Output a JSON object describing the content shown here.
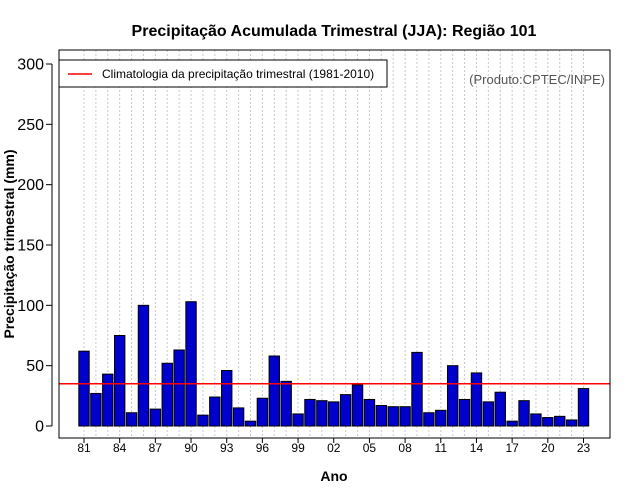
{
  "chart_data": {
    "type": "bar",
    "title": "Precipitação Acumulada Trimestral (JJA): Região 101",
    "xlabel": "Ano",
    "ylabel": "Precipitação trimestral (mm)",
    "ylim": [
      0,
      300
    ],
    "yticks": [
      0,
      50,
      100,
      150,
      200,
      250,
      300
    ],
    "categories": [
      "1981",
      "1982",
      "1983",
      "1984",
      "1985",
      "1986",
      "1987",
      "1988",
      "1989",
      "1990",
      "1991",
      "1992",
      "1993",
      "1994",
      "1995",
      "1996",
      "1997",
      "1998",
      "1999",
      "2000",
      "2001",
      "2002",
      "2003",
      "2004",
      "2005",
      "2006",
      "2007",
      "2008",
      "2009",
      "2010",
      "2011",
      "2012",
      "2013",
      "2014",
      "2015",
      "2016",
      "2017",
      "2018",
      "2019",
      "2020",
      "2021",
      "2022",
      "2023"
    ],
    "xtick_labels": [
      {
        "index": 0,
        "label": "81"
      },
      {
        "index": 3,
        "label": "84"
      },
      {
        "index": 6,
        "label": "87"
      },
      {
        "index": 9,
        "label": "90"
      },
      {
        "index": 12,
        "label": "93"
      },
      {
        "index": 15,
        "label": "96"
      },
      {
        "index": 18,
        "label": "99"
      },
      {
        "index": 21,
        "label": "02"
      },
      {
        "index": 24,
        "label": "05"
      },
      {
        "index": 27,
        "label": "08"
      },
      {
        "index": 30,
        "label": "11"
      },
      {
        "index": 33,
        "label": "14"
      },
      {
        "index": 36,
        "label": "17"
      },
      {
        "index": 39,
        "label": "20"
      },
      {
        "index": 42,
        "label": "23"
      }
    ],
    "values": [
      62,
      27,
      43,
      75,
      11,
      100,
      14,
      52,
      63,
      103,
      9,
      24,
      46,
      15,
      4,
      23,
      58,
      37,
      10,
      22,
      21,
      20,
      26,
      34,
      22,
      17,
      16,
      16,
      61,
      11,
      13,
      50,
      22,
      44,
      20,
      28,
      4,
      21,
      10,
      7,
      8,
      5,
      31
    ],
    "climatology": {
      "label": "Climatologia da precipitação trimestral (1981-2010)",
      "value": 35,
      "color": "#ff0000"
    },
    "bar_color": "#0000cc",
    "grid": "vertical-dotted",
    "legend_position": "top-left",
    "credit": "(Produto:CPTEC/INPE)"
  }
}
